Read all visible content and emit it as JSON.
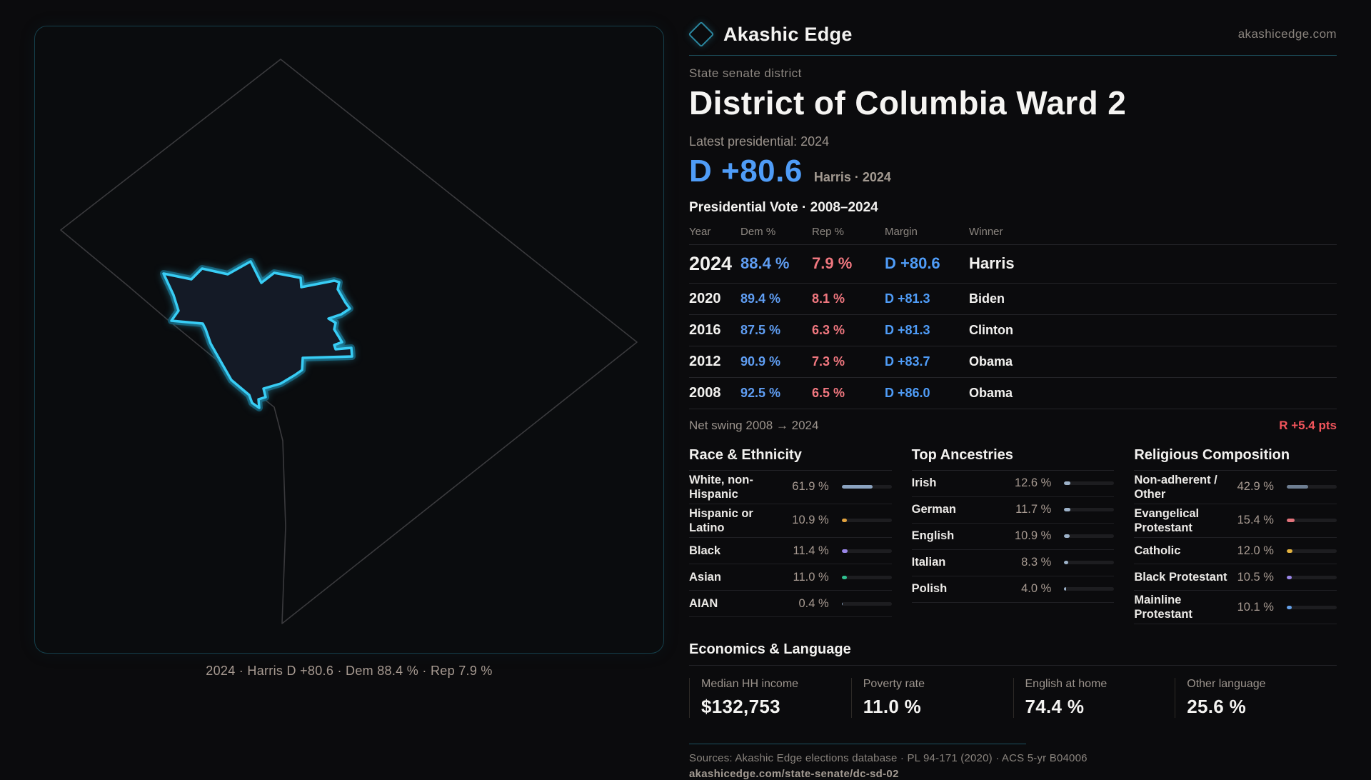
{
  "brand": {
    "name": "Akashic Edge",
    "site": "akashicedge.com",
    "accent_teal": "#2b87a0"
  },
  "header": {
    "kicker": "State senate district",
    "title": "District of Columbia Ward 2"
  },
  "latest": {
    "label": "Latest presidential: 2024",
    "margin": "D +80.6",
    "sub": "Harris · 2024",
    "margin_color": "#4f9cf7"
  },
  "vote_table": {
    "title": "Presidential Vote · 2008–2024",
    "columns": [
      "Year",
      "Dem %",
      "Rep %",
      "Margin",
      "Winner"
    ],
    "dem_color": "#5f9df2",
    "rep_color": "#f0777f",
    "rows": [
      {
        "year": "2024",
        "dem": "88.4 %",
        "rep": "7.9 %",
        "margin": "D +80.6",
        "winner": "Harris"
      },
      {
        "year": "2020",
        "dem": "89.4 %",
        "rep": "8.1 %",
        "margin": "D +81.3",
        "winner": "Biden"
      },
      {
        "year": "2016",
        "dem": "87.5 %",
        "rep": "6.3 %",
        "margin": "D +81.3",
        "winner": "Clinton"
      },
      {
        "year": "2012",
        "dem": "90.9 %",
        "rep": "7.3 %",
        "margin": "D +83.7",
        "winner": "Obama"
      },
      {
        "year": "2008",
        "dem": "92.5 %",
        "rep": "6.5 %",
        "margin": "D +86.0",
        "winner": "Obama"
      }
    ]
  },
  "net_swing": {
    "label": "Net swing 2008 → 2024",
    "value": "R +5.4 pts",
    "value_color": "#f2555c"
  },
  "sections": {
    "race": {
      "title": "Race & Ethnicity",
      "rows": [
        {
          "label": "White, non-Hispanic",
          "value": "61.9 %",
          "pct": 61.9,
          "color": "#8ba3c0"
        },
        {
          "label": "Hispanic or Latino",
          "value": "10.9 %",
          "pct": 10.9,
          "color": "#e2a23e"
        },
        {
          "label": "Black",
          "value": "11.4 %",
          "pct": 11.4,
          "color": "#9a86e8"
        },
        {
          "label": "Asian",
          "value": "11.0 %",
          "pct": 11.0,
          "color": "#2fbf8f"
        },
        {
          "label": "AIAN",
          "value": "0.4 %",
          "pct": 0.4,
          "color": "#8ba3c0"
        }
      ]
    },
    "ancestry": {
      "title": "Top Ancestries",
      "rows": [
        {
          "label": "Irish",
          "value": "12.6 %",
          "pct": 12.6,
          "color": "#9db2c9"
        },
        {
          "label": "German",
          "value": "11.7 %",
          "pct": 11.7,
          "color": "#9db2c9"
        },
        {
          "label": "English",
          "value": "10.9 %",
          "pct": 10.9,
          "color": "#9db2c9"
        },
        {
          "label": "Italian",
          "value": "8.3 %",
          "pct": 8.3,
          "color": "#9db2c9"
        },
        {
          "label": "Polish",
          "value": "4.0 %",
          "pct": 4.0,
          "color": "#9db2c9"
        }
      ]
    },
    "religion": {
      "title": "Religious Composition",
      "rows": [
        {
          "label": "Non-adherent / Other",
          "value": "42.9 %",
          "pct": 42.9,
          "color": "#6e7e92"
        },
        {
          "label": "Evangelical Protestant",
          "value": "15.4 %",
          "pct": 15.4,
          "color": "#e2737b"
        },
        {
          "label": "Catholic",
          "value": "12.0 %",
          "pct": 12.0,
          "color": "#e3b23f"
        },
        {
          "label": "Black Protestant",
          "value": "10.5 %",
          "pct": 10.5,
          "color": "#9a86e8"
        },
        {
          "label": "Mainline Protestant",
          "value": "10.1 %",
          "pct": 10.1,
          "color": "#64a0e8"
        }
      ]
    }
  },
  "economics": {
    "title": "Economics & Language",
    "stats": [
      {
        "label": "Median HH income",
        "value": "$132,753"
      },
      {
        "label": "Poverty rate",
        "value": "11.0 %"
      },
      {
        "label": "English at home",
        "value": "74.4 %"
      },
      {
        "label": "Other language",
        "value": "25.6 %"
      }
    ]
  },
  "map": {
    "caption": "2024 · Harris D +80.6 · Dem 88.4 % · Rep 7.9 %",
    "district_color": "#38cdf5"
  },
  "footer": {
    "sources": "Sources: Akashic Edge elections database · PL 94-171 (2020) · ACS 5-yr B04006",
    "permalink": "akashicedge.com/state-senate/dc-sd-02"
  }
}
